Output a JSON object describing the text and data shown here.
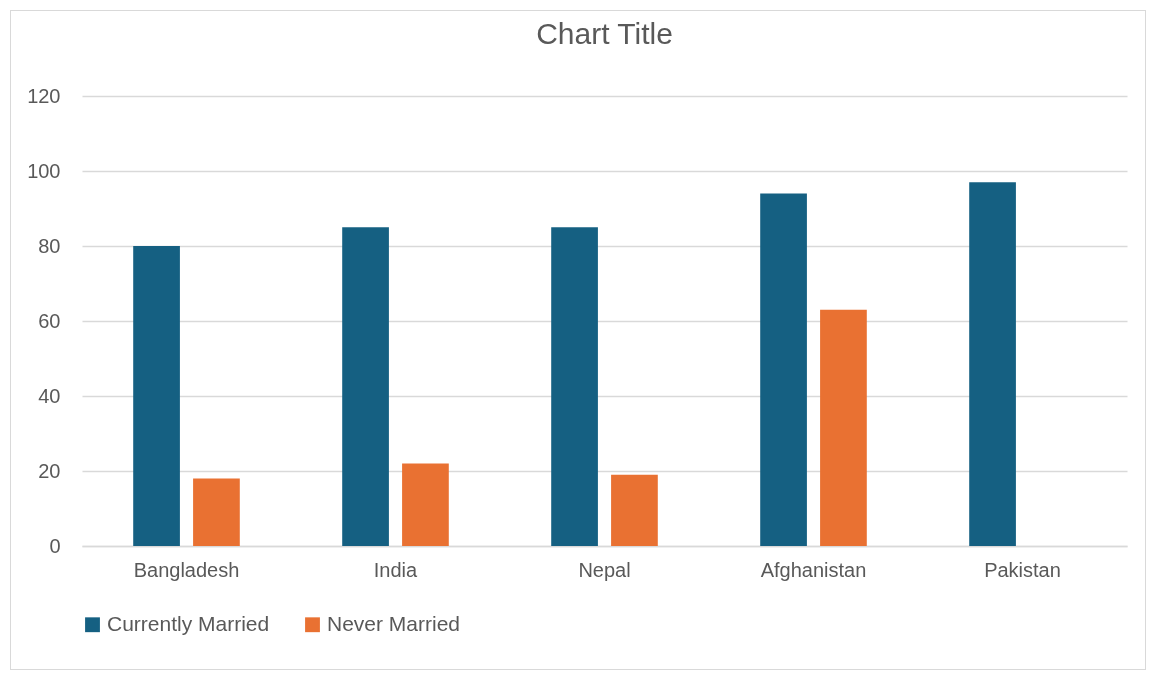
{
  "chart_data": {
    "type": "bar",
    "title": "Chart Title",
    "categories": [
      "Bangladesh",
      "India",
      "Nepal",
      "Afghanistan",
      "Pakistan"
    ],
    "series": [
      {
        "name": "Currently Married",
        "color": "#156082",
        "values": [
          80,
          85,
          85,
          94,
          97
        ]
      },
      {
        "name": "Never Married",
        "color": "#e97132",
        "values": [
          18,
          22,
          19,
          63,
          null
        ]
      }
    ],
    "ylim": [
      0,
      120
    ],
    "yticks": [
      0,
      20,
      40,
      60,
      80,
      100,
      120
    ],
    "grid": "y",
    "legend": "bottom"
  }
}
